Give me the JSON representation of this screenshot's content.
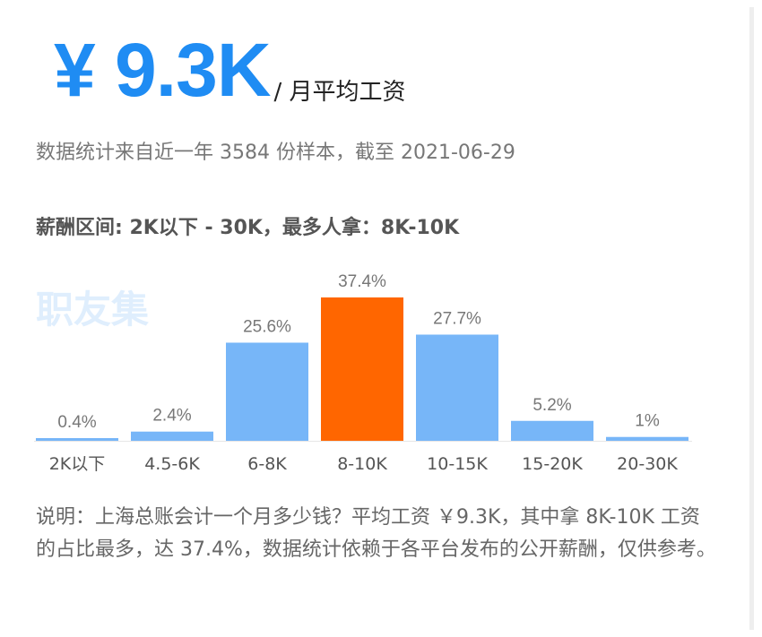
{
  "header": {
    "salary": "¥ 9.3K",
    "unit": "/ 月平均工资",
    "subtitle": "数据统计来自近一年 3584 份样本，截至 2021-06-29",
    "range": "薪酬区间: 2K以下 - 30K，最多人拿：8K-10K"
  },
  "watermark": "职友集",
  "chart_data": {
    "type": "bar",
    "categories": [
      "2K以下",
      "4.5-6K",
      "6-8K",
      "8-10K",
      "10-15K",
      "15-20K",
      "20-30K"
    ],
    "values": [
      0.4,
      2.4,
      25.6,
      37.4,
      27.7,
      5.2,
      1
    ],
    "labels": [
      "0.4%",
      "2.4%",
      "25.6%",
      "37.4%",
      "27.7%",
      "5.2%",
      "1%"
    ],
    "highlight_index": 3,
    "colors": {
      "normal": "#77b6f8",
      "highlight": "#ff6600"
    },
    "ylim": [
      0,
      37.4
    ],
    "grid": false
  },
  "note": "说明：上海总账会计一个月多少钱？平均工资 ￥9.3K，其中拿 8K-10K 工资的占比最多，达 37.4%，数据统计依赖于各平台发布的公开薪酬，仅供参考。"
}
